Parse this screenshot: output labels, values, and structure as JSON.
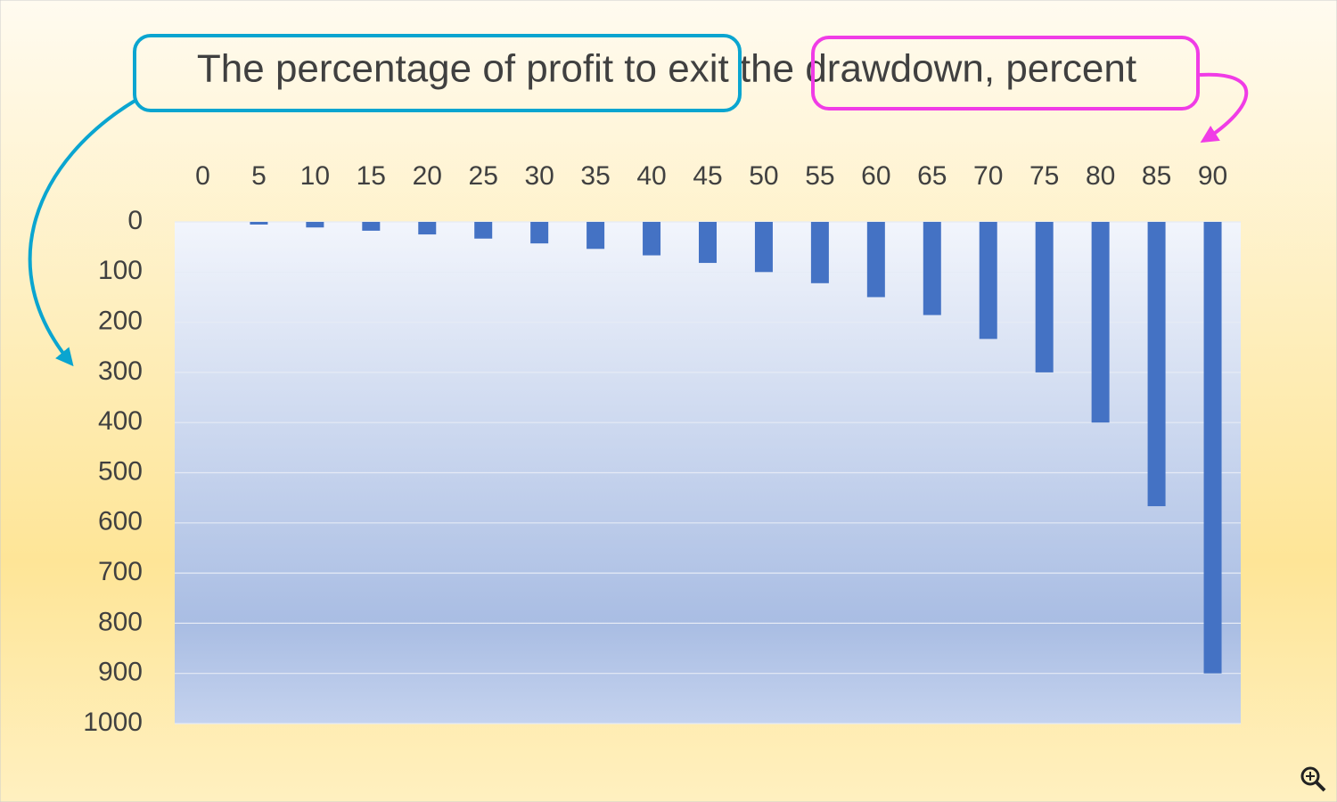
{
  "chart_data": {
    "type": "bar",
    "title": "The percentage of profit to exit the drawdown, percent",
    "categories": [
      "0",
      "5",
      "10",
      "15",
      "20",
      "25",
      "30",
      "35",
      "40",
      "45",
      "50",
      "55",
      "60",
      "65",
      "70",
      "75",
      "80",
      "85",
      "90"
    ],
    "values": [
      0,
      5.3,
      11.1,
      17.6,
      25,
      33.3,
      42.9,
      53.8,
      66.7,
      81.8,
      100,
      122.2,
      150,
      185.7,
      233.3,
      300,
      400,
      566.7,
      900
    ],
    "color": "#4472c4",
    "ylim": [
      0,
      1000
    ],
    "yticks": [
      0,
      100,
      200,
      300,
      400,
      500,
      600,
      700,
      800,
      900,
      1000
    ],
    "y_reversed": true,
    "grid": true
  }
}
